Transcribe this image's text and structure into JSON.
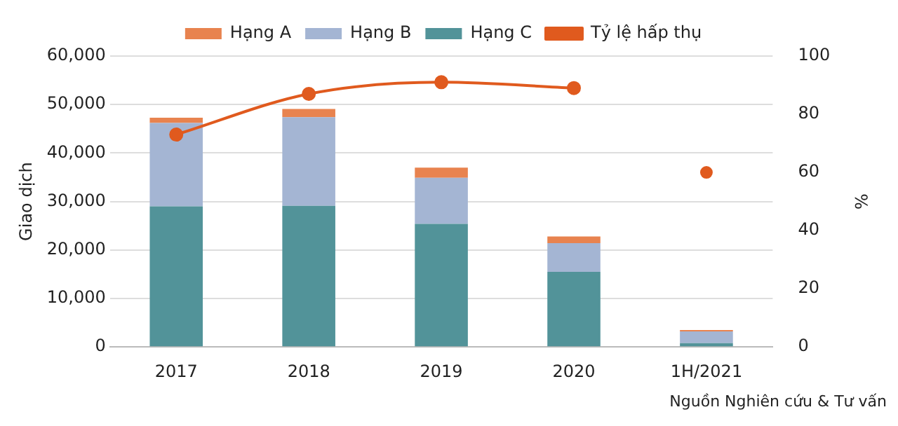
{
  "chart_data": {
    "type": "bar",
    "stacked": true,
    "categories": [
      "2017",
      "2018",
      "2019",
      "2020",
      "1H/2021"
    ],
    "series": [
      {
        "name": "Hạng C",
        "color": "#529399",
        "values": [
          29000,
          29100,
          25400,
          15500,
          800
        ]
      },
      {
        "name": "Hạng B",
        "color": "#a4b5d3",
        "values": [
          17200,
          18300,
          9500,
          5900,
          2400
        ]
      },
      {
        "name": "Hạng A",
        "color": "#e8834f",
        "values": [
          1100,
          1700,
          2100,
          1400,
          300
        ]
      },
      {
        "name": "Tỷ lệ hấp thụ",
        "type": "line",
        "axis": "y2",
        "color": "#e05a1e",
        "marker": "circle",
        "values": [
          73,
          87,
          91,
          89,
          null
        ]
      },
      {
        "type": "scatter",
        "axis": "y2",
        "color": "#e05a1e",
        "marker": "circle",
        "x": [
          "1H/2021"
        ],
        "values": [
          60
        ]
      }
    ],
    "ylabel": "Giao dịch",
    "y2label": "%",
    "ylim": [
      0,
      60000
    ],
    "yticks": [
      0,
      {
        "value": 10000,
        "label": "10,000"
      },
      {
        "value": 20000,
        "label": "20,000"
      },
      {
        "value": 30000,
        "label": "30,000"
      },
      {
        "value": 40000,
        "label": "40,000"
      },
      {
        "value": 50000,
        "label": "50,000"
      },
      {
        "value": 60000,
        "label": "60,000"
      }
    ],
    "y2lim": [
      0,
      100
    ],
    "y2ticks": [
      0,
      20,
      40,
      60,
      80,
      100
    ],
    "grid": "y",
    "legend": "top",
    "annotations": [
      "Nguồn Nghiên cứu & Tư vấn"
    ]
  }
}
